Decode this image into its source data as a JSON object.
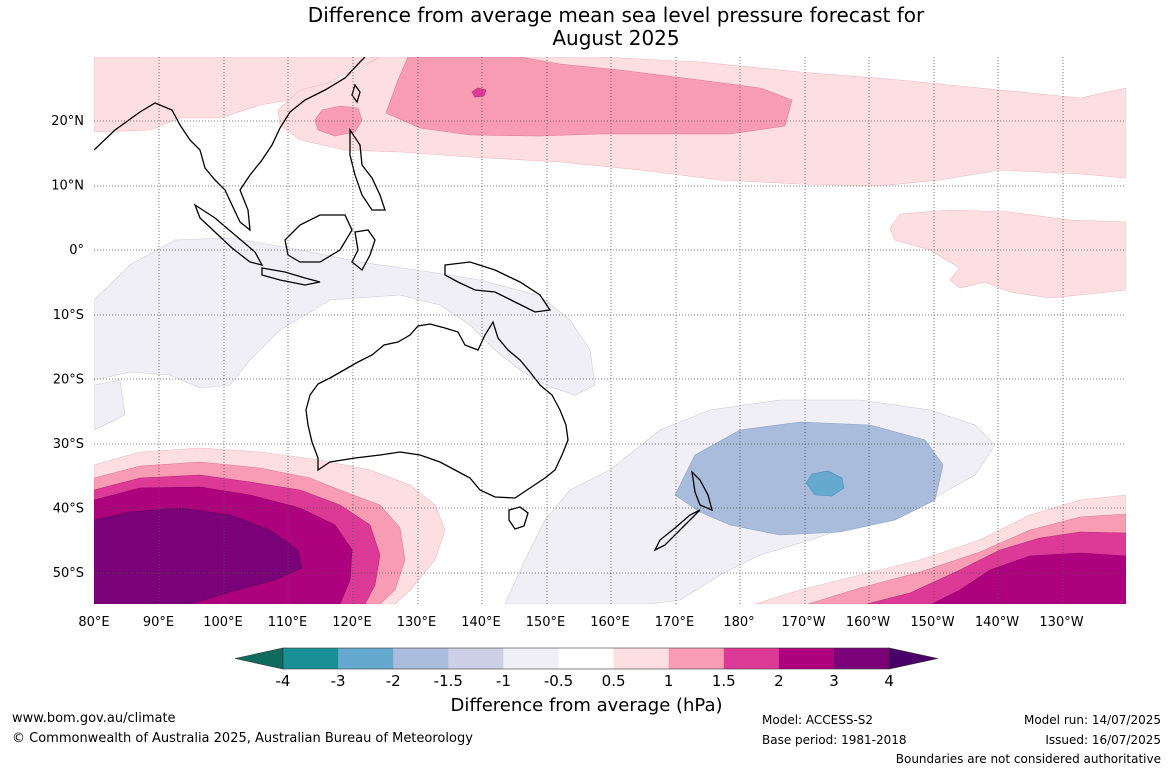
{
  "title": {
    "line1": "Difference from average mean sea level pressure forecast for",
    "line2": "August 2025"
  },
  "map": {
    "region": "Australia, Indian Ocean and Western Pacific",
    "lon_labels": [
      "80°E",
      "90°E",
      "100°E",
      "110°E",
      "120°E",
      "130°E",
      "140°E",
      "150°E",
      "160°E",
      "170°E",
      "180°",
      "170°W",
      "160°W",
      "150°W",
      "140°W",
      "130°W"
    ],
    "lat_labels": [
      "20°N",
      "10°N",
      "0°",
      "10°S",
      "20°S",
      "30°S",
      "40°S",
      "50°S"
    ],
    "grid": "dotted"
  },
  "colorbar": {
    "ticks": [
      "-4",
      "-3",
      "-2",
      "-1.5",
      "-1",
      "-0.5",
      "0.5",
      "1",
      "1.5",
      "2",
      "3",
      "4"
    ],
    "colors": [
      "#0f6b5e",
      "#1a8f95",
      "#65a9cf",
      "#a9bcdc",
      "#cdd0e6",
      "#f1eff6",
      "#ffffff",
      "#fddfe1",
      "#f89cb4",
      "#dd3a97",
      "#ae017e",
      "#7a0177",
      "#49006a"
    ],
    "title": "Difference from average (hPa)"
  },
  "footer": {
    "website": "www.bom.gov.au/climate",
    "copyright": "© Commonwealth of Australia 2025, Australian Bureau of Meteorology",
    "model": "Model: ACCESS-S2",
    "base_period": "Base period: 1981-2018",
    "model_run": "Model run: 14/07/2025",
    "issued": "Issued: 16/07/2025",
    "disclaimer": "Boundaries are not considered authoritative"
  }
}
